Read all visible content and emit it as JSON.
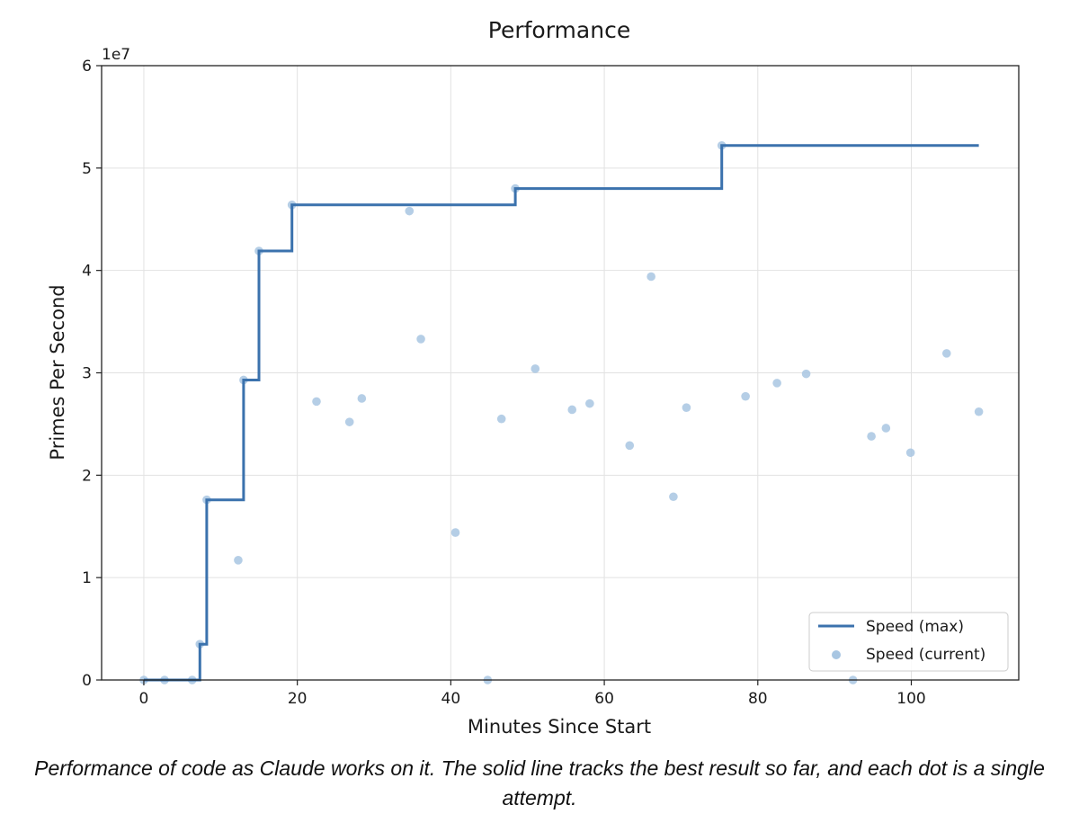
{
  "caption": "Performance of code as Claude works on it. The solid line tracks the best result so far, and each dot is a single attempt.",
  "colors": {
    "max_line": "#3b72ad",
    "current_dots": "#a8c6e2",
    "grid": "#e2e2e2",
    "axes": "#222222"
  },
  "chart_data": {
    "type": "line",
    "title": "Performance",
    "xlabel": "Minutes Since Start",
    "ylabel": "Primes Per Second",
    "y_multiplier_label": "1e7",
    "xlim": [
      -5.5,
      114
    ],
    "ylim": [
      0,
      6
    ],
    "xticks": [
      0,
      20,
      40,
      60,
      80,
      100
    ],
    "yticks": [
      0,
      1,
      2,
      3,
      4,
      5,
      6
    ],
    "grid": true,
    "legend_position": "lower-right",
    "series": [
      {
        "name": "Speed (max)",
        "kind": "step",
        "x": [
          0,
          7.3,
          7.3,
          8.2,
          8.2,
          13.0,
          13.0,
          15.0,
          15.0,
          19.3,
          19.3,
          48.4,
          48.4,
          75.3,
          75.3,
          108.8
        ],
        "y": [
          0,
          0,
          0.35,
          0.35,
          1.76,
          1.76,
          2.93,
          2.93,
          4.19,
          4.19,
          4.64,
          4.64,
          4.8,
          4.8,
          5.22,
          5.22
        ]
      },
      {
        "name": "Speed (current)",
        "kind": "scatter",
        "x": [
          0,
          2.7,
          6.3,
          7.3,
          8.2,
          12.3,
          13.0,
          15.0,
          19.3,
          22.5,
          26.8,
          28.4,
          34.6,
          36.1,
          40.6,
          44.8,
          46.6,
          48.4,
          51.0,
          55.8,
          58.1,
          63.3,
          66.1,
          69.0,
          70.7,
          75.3,
          78.4,
          82.5,
          86.3,
          92.4,
          94.8,
          96.7,
          99.9,
          104.6,
          108.8
        ],
        "y": [
          0,
          0,
          0,
          0.35,
          1.76,
          1.17,
          2.93,
          4.19,
          4.64,
          2.72,
          2.52,
          2.75,
          4.58,
          3.33,
          1.44,
          0,
          2.55,
          4.8,
          3.04,
          2.64,
          2.7,
          2.29,
          3.94,
          1.79,
          2.66,
          5.22,
          2.77,
          2.9,
          2.99,
          0,
          2.38,
          2.46,
          2.22,
          3.19,
          2.62
        ]
      }
    ]
  }
}
